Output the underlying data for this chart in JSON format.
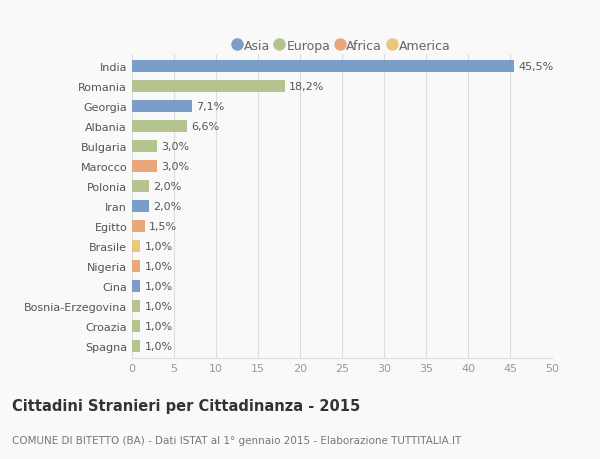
{
  "countries": [
    "India",
    "Romania",
    "Georgia",
    "Albania",
    "Bulgaria",
    "Marocco",
    "Polonia",
    "Iran",
    "Egitto",
    "Brasile",
    "Nigeria",
    "Cina",
    "Bosnia-Erzegovina",
    "Croazia",
    "Spagna"
  ],
  "values": [
    45.5,
    18.2,
    7.1,
    6.6,
    3.0,
    3.0,
    2.0,
    2.0,
    1.5,
    1.0,
    1.0,
    1.0,
    1.0,
    1.0,
    1.0
  ],
  "labels": [
    "45,5%",
    "18,2%",
    "7,1%",
    "6,6%",
    "3,0%",
    "3,0%",
    "2,0%",
    "2,0%",
    "1,5%",
    "1,0%",
    "1,0%",
    "1,0%",
    "1,0%",
    "1,0%",
    "1,0%"
  ],
  "continents": [
    "Asia",
    "Europa",
    "Asia",
    "Europa",
    "Europa",
    "Africa",
    "Europa",
    "Asia",
    "Africa",
    "America",
    "Africa",
    "Asia",
    "Europa",
    "Europa",
    "Europa"
  ],
  "colors": {
    "Asia": "#7b9ec9",
    "Europa": "#b5c48e",
    "Africa": "#e8a87c",
    "America": "#e8c87a"
  },
  "legend_order": [
    "Asia",
    "Europa",
    "Africa",
    "America"
  ],
  "xlim": [
    0,
    50
  ],
  "xticks": [
    0,
    5,
    10,
    15,
    20,
    25,
    30,
    35,
    40,
    45,
    50
  ],
  "title": "Cittadini Stranieri per Cittadinanza - 2015",
  "subtitle": "COMUNE DI BITETTO (BA) - Dati ISTAT al 1° gennaio 2015 - Elaborazione TUTTITALIA.IT",
  "background_color": "#f9f9f9",
  "grid_color": "#dddddd",
  "bar_height": 0.6,
  "label_fontsize": 8,
  "axis_fontsize": 8,
  "title_fontsize": 10.5,
  "subtitle_fontsize": 7.5,
  "legend_fontsize": 9
}
